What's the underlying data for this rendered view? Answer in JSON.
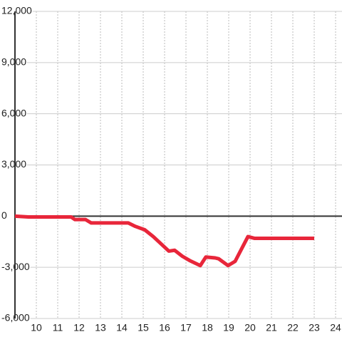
{
  "chart_data": {
    "type": "line",
    "x": [
      9.0,
      9.63,
      11.63,
      11.8,
      12.3,
      12.57,
      12.8,
      14.3,
      14.63,
      15.07,
      15.47,
      16.2,
      16.47,
      16.83,
      17.17,
      17.67,
      17.93,
      18.37,
      18.53,
      18.97,
      19.3,
      19.9,
      20.2,
      23.0
    ],
    "series": [
      {
        "color": "#e8263a",
        "values": [
          0,
          -50,
          -50,
          -200,
          -200,
          -400,
          -400,
          -400,
          -600,
          -800,
          -1200,
          -2050,
          -2000,
          -2350,
          -2600,
          -2900,
          -2400,
          -2450,
          -2500,
          -2900,
          -2650,
          -1200,
          -1300,
          -1300
        ]
      }
    ],
    "xlim": [
      9,
      24.3
    ],
    "xticks": [
      10,
      11,
      12,
      13,
      14,
      15,
      16,
      17,
      18,
      19,
      20,
      21,
      22,
      23,
      24
    ],
    "ylim": [
      -6000,
      12000
    ],
    "yticks": [
      {
        "value": -6000,
        "label": "-6,000"
      },
      {
        "value": -3000,
        "label": "-3,000"
      },
      0,
      {
        "value": 3000,
        "label": "3,000"
      },
      {
        "value": 6000,
        "label": "6,000"
      },
      {
        "value": 9000,
        "label": "9,000"
      },
      {
        "value": 12000,
        "label": "12,000"
      }
    ],
    "grid": true
  }
}
